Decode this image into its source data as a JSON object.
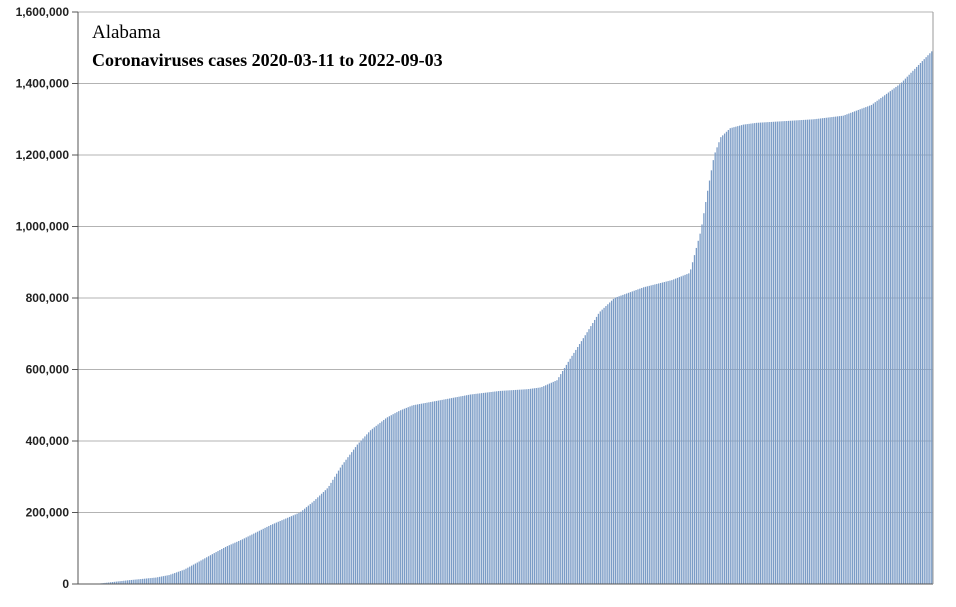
{
  "chart_data": {
    "type": "bar",
    "title": "Alabama",
    "subtitle": "Coronaviruses cases 2020-03-11 to 2022-09-03",
    "xlabel": "",
    "ylabel": "",
    "x_start": "2020-03-11",
    "x_end": "2022-09-03",
    "ylim": [
      0,
      1600000
    ],
    "y_ticks": [
      0,
      200000,
      400000,
      600000,
      800000,
      1000000,
      1200000,
      1400000,
      1600000
    ],
    "y_tick_labels": [
      "0",
      "200,000",
      "400,000",
      "600,000",
      "800,000",
      "1,000,000",
      "1,200,000",
      "1,400,000",
      "1,600,000"
    ],
    "grid": "horizontal",
    "legend": "none",
    "bar_color": "#7b9cc6",
    "series": [
      {
        "dates": [
          "2020-03-11",
          "2020-04-01",
          "2020-05-01",
          "2020-06-01",
          "2020-06-15",
          "2020-07-01",
          "2020-07-15",
          "2020-08-01",
          "2020-08-15",
          "2020-09-01",
          "2020-10-01",
          "2020-11-01",
          "2020-11-15",
          "2020-12-01",
          "2020-12-15",
          "2021-01-01",
          "2021-01-15",
          "2021-02-01",
          "2021-02-15",
          "2021-03-01",
          "2021-04-01",
          "2021-05-01",
          "2021-06-01",
          "2021-07-01",
          "2021-07-15",
          "2021-08-01",
          "2021-08-15",
          "2021-09-01",
          "2021-09-15",
          "2021-10-01",
          "2021-11-01",
          "2021-12-01",
          "2021-12-20",
          "2022-01-01",
          "2022-01-08",
          "2022-01-15",
          "2022-01-22",
          "2022-02-01",
          "2022-02-15",
          "2022-03-01",
          "2022-04-01",
          "2022-05-01",
          "2022-06-01",
          "2022-07-01",
          "2022-08-01",
          "2022-09-03"
        ],
        "values": [
          0,
          1000,
          10000,
          18000,
          25000,
          40000,
          60000,
          85000,
          105000,
          125000,
          165000,
          200000,
          230000,
          270000,
          330000,
          390000,
          430000,
          465000,
          485000,
          500000,
          515000,
          530000,
          540000,
          545000,
          550000,
          570000,
          630000,
          700000,
          760000,
          800000,
          830000,
          850000,
          870000,
          990000,
          1100000,
          1200000,
          1250000,
          1275000,
          1285000,
          1290000,
          1295000,
          1300000,
          1310000,
          1340000,
          1400000,
          1490000
        ]
      }
    ]
  }
}
